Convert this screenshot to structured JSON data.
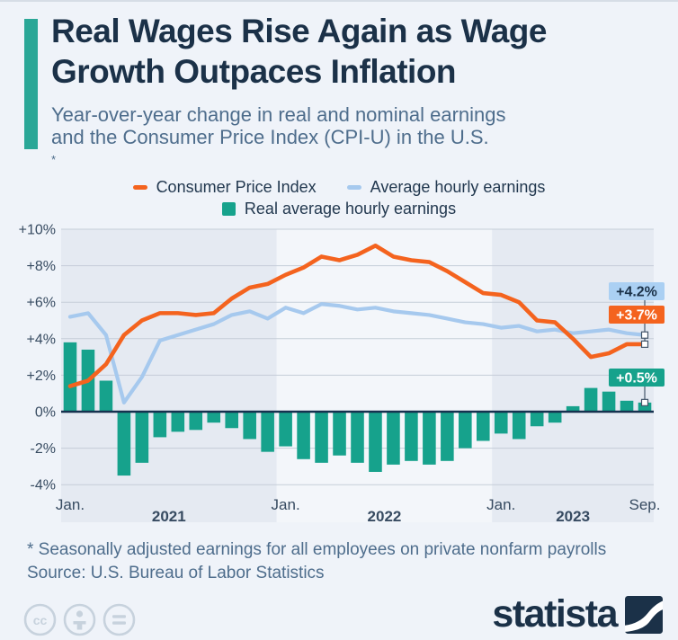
{
  "header": {
    "title_line1": "Real Wages Rise Again as Wage",
    "title_line2": "Growth Outpaces Inflation",
    "subtitle_line1": "Year-over-year change in real and nominal earnings",
    "subtitle_line2": "and the Consumer Price Index (CPI-U) in the U.S.",
    "subtitle_footnote_marker": "*"
  },
  "legend": [
    {
      "label": "Consumer Price Index",
      "marker": "dash",
      "color": "#f4631e"
    },
    {
      "label": "Average hourly earnings",
      "marker": "dash",
      "color": "#a6c9ee"
    },
    {
      "label": "Real average hourly earnings",
      "marker": "square",
      "color": "#16a28c"
    }
  ],
  "chart_data": {
    "type": "combo-bar-line",
    "title": "",
    "xlabel": "",
    "ylabel": "",
    "ylim": [
      -4,
      10
    ],
    "grid": true,
    "y_ticks": [
      "+10%",
      "+8%",
      "+6%",
      "+4%",
      "+2%",
      "0%",
      "-2%",
      "-4%"
    ],
    "y_tick_values": [
      10,
      8,
      6,
      4,
      2,
      0,
      -2,
      -4
    ],
    "months": [
      "2021-01",
      "2021-02",
      "2021-03",
      "2021-04",
      "2021-05",
      "2021-06",
      "2021-07",
      "2021-08",
      "2021-09",
      "2021-10",
      "2021-11",
      "2021-12",
      "2022-01",
      "2022-02",
      "2022-03",
      "2022-04",
      "2022-05",
      "2022-06",
      "2022-07",
      "2022-08",
      "2022-09",
      "2022-10",
      "2022-11",
      "2022-12",
      "2023-01",
      "2023-02",
      "2023-03",
      "2023-04",
      "2023-05",
      "2023-06",
      "2023-07",
      "2023-08",
      "2023-09"
    ],
    "x_tick_labels": [
      {
        "label": "Jan.",
        "month_index": 0
      },
      {
        "label": "Jan.",
        "month_index": 12
      },
      {
        "label": "Jan.",
        "month_index": 24
      },
      {
        "label": "Sep.",
        "month_index": 32
      }
    ],
    "year_labels": [
      {
        "label": "2021",
        "band": [
          0,
          12
        ]
      },
      {
        "label": "2022",
        "band": [
          12,
          24
        ]
      },
      {
        "label": "2023",
        "band": [
          24,
          33
        ]
      }
    ],
    "series": [
      {
        "name": "Consumer Price Index",
        "type": "line",
        "color": "#f4631e",
        "values": [
          1.4,
          1.7,
          2.6,
          4.2,
          5.0,
          5.4,
          5.4,
          5.3,
          5.4,
          6.2,
          6.8,
          7.0,
          7.5,
          7.9,
          8.5,
          8.3,
          8.6,
          9.1,
          8.5,
          8.3,
          8.2,
          7.7,
          7.1,
          6.5,
          6.4,
          6.0,
          5.0,
          4.9,
          4.0,
          3.0,
          3.2,
          3.7,
          3.7
        ]
      },
      {
        "name": "Average hourly earnings",
        "type": "line",
        "color": "#a6c9ee",
        "values": [
          5.2,
          5.4,
          4.2,
          0.5,
          1.9,
          3.9,
          4.2,
          4.5,
          4.8,
          5.3,
          5.5,
          5.1,
          5.7,
          5.4,
          5.9,
          5.8,
          5.6,
          5.7,
          5.5,
          5.4,
          5.3,
          5.1,
          4.9,
          4.8,
          4.6,
          4.7,
          4.4,
          4.5,
          4.3,
          4.4,
          4.5,
          4.3,
          4.2
        ]
      },
      {
        "name": "Real average hourly earnings",
        "type": "bar",
        "color": "#16a28c",
        "values": [
          3.8,
          3.4,
          1.7,
          -3.5,
          -2.8,
          -1.4,
          -1.1,
          -1.0,
          -0.6,
          -0.9,
          -1.5,
          -2.2,
          -1.9,
          -2.6,
          -2.8,
          -2.4,
          -2.8,
          -3.3,
          -2.9,
          -2.7,
          -2.9,
          -2.7,
          -2.0,
          -1.6,
          -1.2,
          -1.5,
          -0.8,
          -0.6,
          0.3,
          1.3,
          1.1,
          0.6,
          0.5
        ]
      }
    ],
    "end_labels": [
      {
        "text": "+4.2%",
        "bg": "#abd0f3",
        "fg": "#1b3148",
        "series_index": 1
      },
      {
        "text": "+3.7%",
        "bg": "#f4631e",
        "fg": "#ffffff",
        "series_index": 0
      },
      {
        "text": "+0.5%",
        "bg": "#16a28c",
        "fg": "#ffffff",
        "series_index": 2
      }
    ],
    "legend_position": "top",
    "band_colors": {
      "dark": "#e5eaf2",
      "light": "#f3f6fa"
    },
    "gridline_color": "#c5cdd8",
    "zero_line_color": "#16324f",
    "axis_text_color": "#374b61"
  },
  "footer": {
    "footnote": "* Seasonally adjusted earnings for all employees on private nonfarm payrolls",
    "source": "Source: U.S. Bureau of Labor Statistics",
    "license_icons": [
      "cc-icon",
      "person-icon",
      "equals-icon"
    ],
    "brand": "statista"
  },
  "colors": {
    "page_background": "#eff3f9",
    "accent": "#2aa797",
    "title_text": "#1b3148",
    "subtitle_text": "#4e6d8c"
  }
}
